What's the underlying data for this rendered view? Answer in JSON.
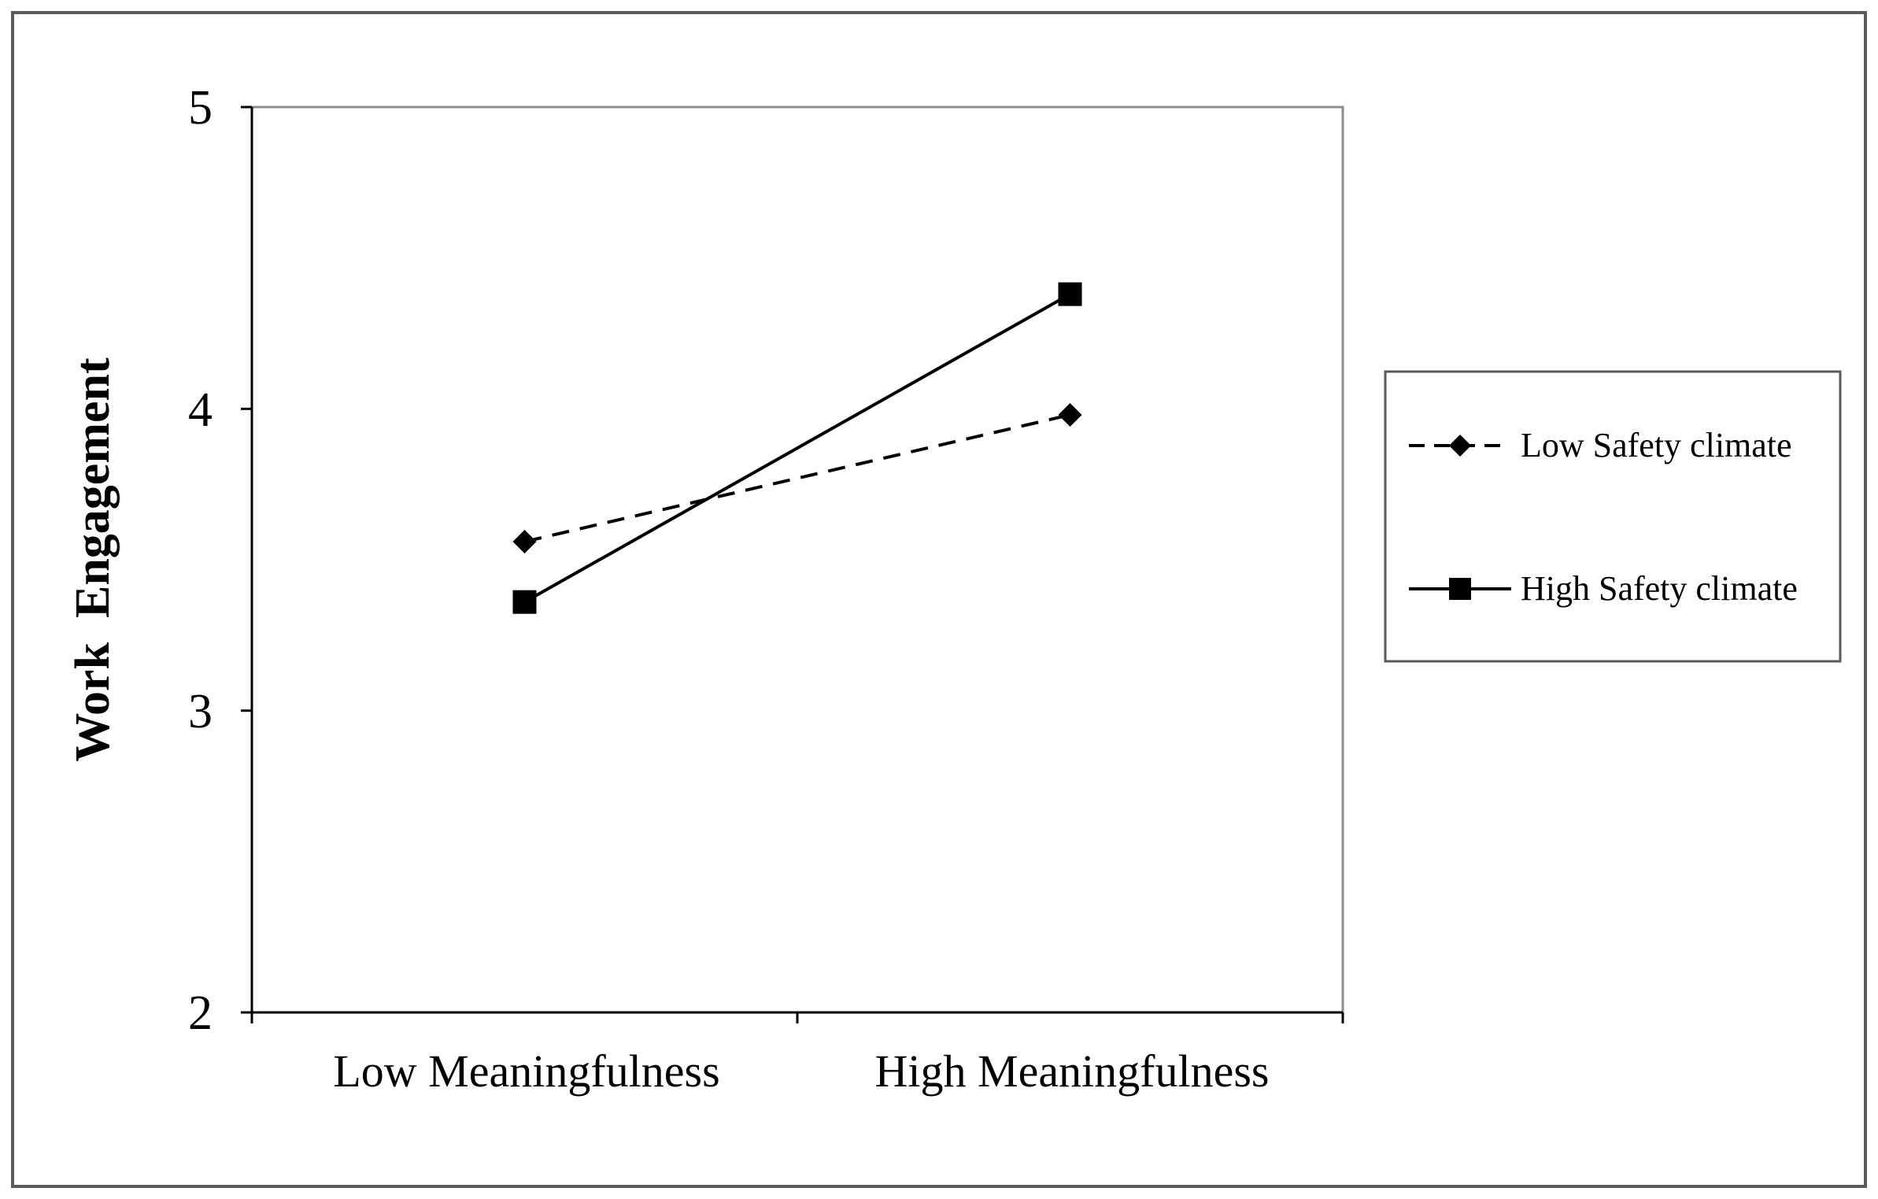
{
  "chart_data": {
    "type": "line",
    "categories": [
      "Low Meaningfulness",
      "High Meaningfulness"
    ],
    "series": [
      {
        "name": "Low Safety climate",
        "values": [
          3.56,
          3.98
        ],
        "line_style": "dashed",
        "marker": "diamond",
        "color": "#000000"
      },
      {
        "name": "High Safety climate",
        "values": [
          3.36,
          4.38
        ],
        "line_style": "solid",
        "marker": "square",
        "color": "#000000"
      }
    ],
    "title": "",
    "xlabel": "",
    "ylabel": "Work  Engagement",
    "ylim": [
      2,
      5
    ],
    "yticks": [
      "2",
      "3",
      "4",
      "5"
    ],
    "grid": false,
    "legend_position": "right"
  }
}
